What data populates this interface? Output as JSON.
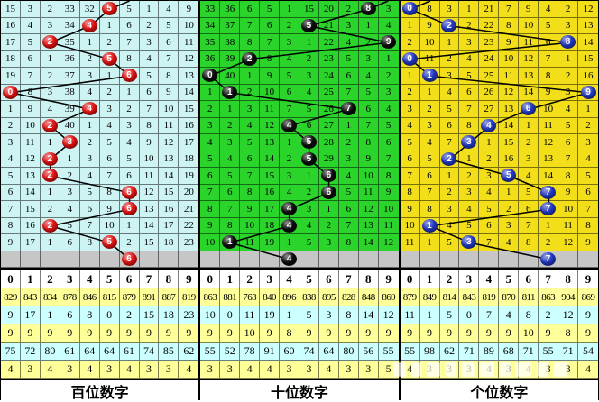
{
  "colors": {
    "panel_bg": [
      "#cdf3f3",
      "#2bd42b",
      "#f2de19"
    ],
    "ball": [
      "#e01010",
      "#0a0a0a",
      "#2036c0"
    ],
    "gray_row": "#c6c6c6",
    "stat_yellow": "#ffff99",
    "stat_cyan": "#ccffff",
    "line": "#000000"
  },
  "watermark": {
    "present": true,
    "legible": false
  },
  "chart_data": {
    "type": "table",
    "description": "Lottery digit trend chart: 15 draw rows per panel, drawn digit shown as ball, cells are miss counts; gray row holds next-period ball; bottom stats per digit 0-9",
    "panels": [
      {
        "id": "hundreds",
        "label": "百位数字",
        "digits": [
          "0",
          "1",
          "2",
          "3",
          "4",
          "5",
          "6",
          "7",
          "8",
          "9"
        ],
        "rows": [
          [
            15,
            3,
            2,
            33,
            32,
            5,
            5,
            1,
            4,
            9
          ],
          [
            16,
            4,
            3,
            34,
            4,
            1,
            6,
            2,
            5,
            10
          ],
          [
            17,
            5,
            2,
            35,
            1,
            2,
            7,
            3,
            6,
            11
          ],
          [
            18,
            6,
            1,
            36,
            2,
            5,
            8,
            4,
            7,
            12
          ],
          [
            19,
            7,
            2,
            37,
            3,
            1,
            6,
            5,
            8,
            13
          ],
          [
            0,
            8,
            3,
            38,
            4,
            2,
            1,
            6,
            9,
            14
          ],
          [
            1,
            9,
            4,
            39,
            4,
            3,
            2,
            7,
            10,
            15
          ],
          [
            2,
            10,
            2,
            40,
            1,
            4,
            3,
            8,
            11,
            16
          ],
          [
            3,
            11,
            1,
            3,
            2,
            5,
            4,
            9,
            12,
            17
          ],
          [
            4,
            12,
            2,
            1,
            3,
            6,
            5,
            10,
            13,
            18
          ],
          [
            5,
            13,
            2,
            2,
            4,
            7,
            6,
            11,
            14,
            19
          ],
          [
            6,
            14,
            1,
            3,
            5,
            8,
            6,
            12,
            15,
            20
          ],
          [
            7,
            15,
            2,
            4,
            6,
            9,
            6,
            13,
            16,
            21
          ],
          [
            8,
            16,
            2,
            5,
            7,
            10,
            1,
            14,
            17,
            22
          ],
          [
            9,
            17,
            1,
            6,
            8,
            5,
            2,
            15,
            18,
            23
          ]
        ],
        "drawn_cols": [
          5,
          4,
          2,
          5,
          6,
          0,
          4,
          2,
          3,
          2,
          2,
          6,
          6,
          2,
          5
        ],
        "next_ball_col": 6,
        "stub_col": 6,
        "stats": {
          "appear_total": [
            829,
            843,
            834,
            878,
            846,
            815,
            879,
            891,
            887,
            819
          ],
          "current_miss": [
            9,
            17,
            1,
            6,
            8,
            0,
            2,
            15,
            18,
            23
          ],
          "freq": [
            9,
            9,
            9,
            9,
            9,
            9,
            9,
            9,
            9,
            9
          ],
          "max_miss": [
            75,
            72,
            80,
            61,
            64,
            64,
            61,
            74,
            85,
            62
          ],
          "max_streak": [
            4,
            3,
            4,
            3,
            4,
            3,
            4,
            3,
            3,
            4
          ]
        }
      },
      {
        "id": "tens",
        "label": "十位数字",
        "digits": [
          "0",
          "1",
          "2",
          "3",
          "4",
          "5",
          "6",
          "7",
          "8",
          "9"
        ],
        "rows": [
          [
            33,
            36,
            6,
            5,
            1,
            15,
            20,
            2,
            8,
            3
          ],
          [
            34,
            37,
            7,
            6,
            2,
            5,
            21,
            3,
            1,
            4
          ],
          [
            35,
            38,
            8,
            7,
            3,
            1,
            22,
            4,
            2,
            9
          ],
          [
            36,
            39,
            2,
            8,
            4,
            2,
            23,
            5,
            3,
            1
          ],
          [
            0,
            40,
            1,
            9,
            5,
            3,
            24,
            6,
            4,
            2
          ],
          [
            1,
            1,
            2,
            10,
            6,
            4,
            25,
            7,
            5,
            3
          ],
          [
            2,
            1,
            3,
            11,
            7,
            5,
            26,
            7,
            6,
            4
          ],
          [
            3,
            2,
            4,
            12,
            4,
            6,
            27,
            1,
            7,
            5
          ],
          [
            4,
            3,
            5,
            13,
            1,
            5,
            28,
            2,
            8,
            6
          ],
          [
            5,
            4,
            6,
            14,
            2,
            5,
            29,
            3,
            9,
            7
          ],
          [
            6,
            5,
            7,
            15,
            3,
            1,
            6,
            4,
            10,
            8
          ],
          [
            7,
            6,
            8,
            16,
            4,
            2,
            6,
            5,
            11,
            9
          ],
          [
            8,
            7,
            9,
            17,
            4,
            3,
            1,
            6,
            12,
            10
          ],
          [
            9,
            8,
            10,
            18,
            4,
            4,
            2,
            7,
            13,
            11
          ],
          [
            10,
            1,
            11,
            19,
            1,
            5,
            3,
            8,
            14,
            12
          ]
        ],
        "drawn_cols": [
          8,
          5,
          9,
          2,
          0,
          1,
          7,
          4,
          5,
          5,
          6,
          6,
          4,
          4,
          1
        ],
        "next_ball_col": 4,
        "stub_col": 9,
        "stats": {
          "appear_total": [
            863,
            881,
            763,
            840,
            896,
            838,
            895,
            828,
            848,
            869
          ],
          "current_miss": [
            10,
            0,
            11,
            19,
            1,
            5,
            3,
            8,
            14,
            12
          ],
          "freq": [
            9,
            9,
            10,
            9,
            8,
            9,
            9,
            9,
            9,
            9
          ],
          "max_miss": [
            55,
            52,
            78,
            91,
            60,
            74,
            64,
            80,
            56,
            55
          ],
          "max_streak": [
            3,
            3,
            4,
            4,
            3,
            3,
            4,
            3,
            3,
            5
          ]
        }
      },
      {
        "id": "units",
        "label": "个位数字",
        "digits": [
          "0",
          "1",
          "2",
          "3",
          "4",
          "5",
          "6",
          "7",
          "8",
          "9"
        ],
        "rows": [
          [
            0,
            8,
            3,
            1,
            21,
            7,
            9,
            4,
            2,
            12
          ],
          [
            1,
            9,
            2,
            2,
            22,
            8,
            10,
            5,
            3,
            13
          ],
          [
            2,
            10,
            1,
            3,
            23,
            9,
            11,
            6,
            8,
            14
          ],
          [
            0,
            11,
            2,
            4,
            24,
            10,
            12,
            7,
            1,
            15
          ],
          [
            1,
            1,
            3,
            5,
            25,
            11,
            13,
            8,
            2,
            16
          ],
          [
            2,
            1,
            4,
            6,
            26,
            12,
            14,
            9,
            3,
            9
          ],
          [
            3,
            2,
            5,
            7,
            27,
            13,
            6,
            10,
            4,
            1
          ],
          [
            4,
            3,
            6,
            8,
            4,
            14,
            1,
            11,
            5,
            2
          ],
          [
            5,
            4,
            7,
            3,
            1,
            15,
            2,
            12,
            6,
            3
          ],
          [
            6,
            5,
            2,
            1,
            2,
            16,
            3,
            13,
            7,
            4
          ],
          [
            7,
            6,
            1,
            2,
            3,
            5,
            4,
            14,
            8,
            5
          ],
          [
            8,
            7,
            2,
            3,
            4,
            1,
            5,
            7,
            9,
            6
          ],
          [
            9,
            8,
            3,
            4,
            5,
            2,
            6,
            7,
            10,
            7
          ],
          [
            10,
            1,
            4,
            5,
            6,
            3,
            7,
            1,
            11,
            8
          ],
          [
            11,
            1,
            5,
            3,
            7,
            4,
            8,
            2,
            12,
            9
          ]
        ],
        "drawn_cols": [
          0,
          2,
          8,
          0,
          1,
          9,
          6,
          4,
          3,
          2,
          5,
          7,
          7,
          1,
          3
        ],
        "next_ball_col": 7,
        "stub_col": 1,
        "stats": {
          "appear_total": [
            879,
            849,
            814,
            843,
            819,
            870,
            811,
            863,
            904,
            869
          ],
          "current_miss": [
            11,
            1,
            5,
            0,
            7,
            4,
            8,
            2,
            12,
            9
          ],
          "freq": [
            9,
            9,
            9,
            9,
            9,
            9,
            10,
            9,
            8,
            9
          ],
          "max_miss": [
            55,
            98,
            62,
            71,
            89,
            68,
            71,
            55,
            71,
            54
          ],
          "max_streak": [
            4,
            3,
            3,
            3,
            4,
            3,
            4,
            3,
            3,
            4
          ]
        }
      }
    ]
  }
}
